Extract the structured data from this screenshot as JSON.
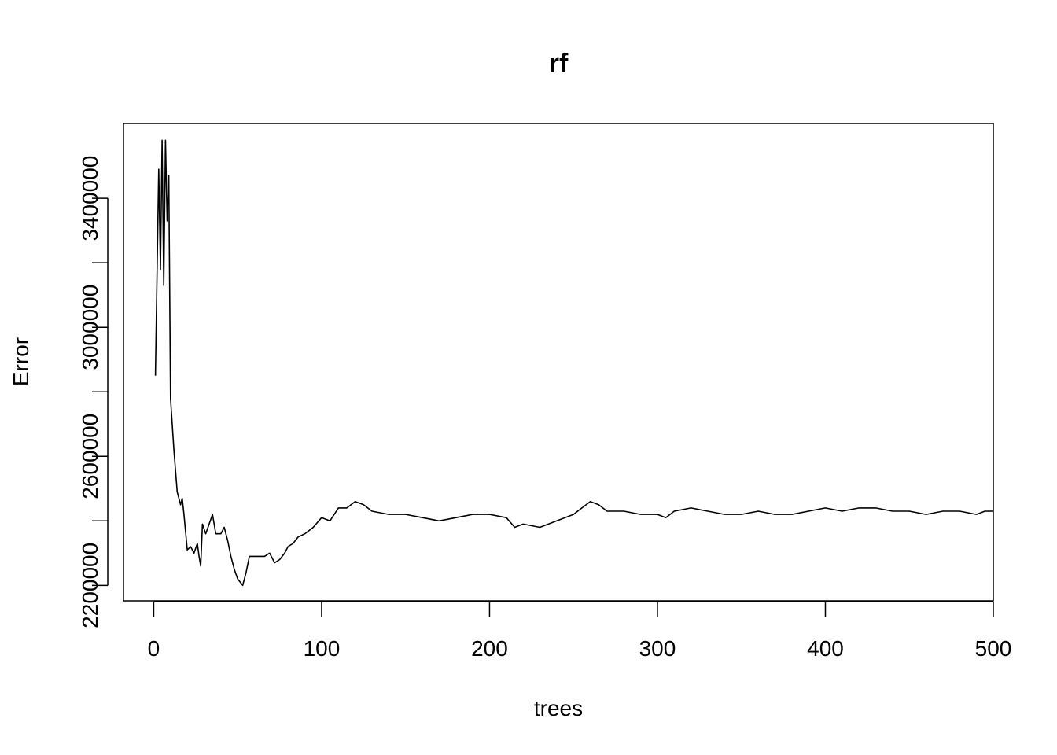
{
  "chart_data": {
    "type": "line",
    "title": "rf",
    "xlabel": "trees",
    "ylabel": "Error",
    "xlim": [
      -18,
      500
    ],
    "ylim": [
      2152000,
      3632000
    ],
    "x_ticks": [
      0,
      100,
      200,
      300,
      400,
      500
    ],
    "y_ticks": [
      2200000,
      2400000,
      2600000,
      2800000,
      3000000,
      3200000,
      3400000
    ],
    "y_tick_labels": [
      "2200000",
      "",
      "2600000",
      "",
      "3000000",
      "",
      "3400000"
    ],
    "x_tick_labels": [
      "0",
      "100",
      "200",
      "300",
      "400",
      "500"
    ],
    "grid": false,
    "legend": "none",
    "line_color": "#000000",
    "series": [
      {
        "points": [
          [
            1,
            2850000
          ],
          [
            2,
            3170000
          ],
          [
            3,
            3490000
          ],
          [
            4,
            3180000
          ],
          [
            5,
            3580000
          ],
          [
            6,
            3130000
          ],
          [
            7,
            3580000
          ],
          [
            8,
            3330000
          ],
          [
            9,
            3470000
          ],
          [
            10,
            2780000
          ],
          [
            12,
            2620000
          ],
          [
            14,
            2490000
          ],
          [
            16,
            2450000
          ],
          [
            17,
            2470000
          ],
          [
            18,
            2420000
          ],
          [
            20,
            2310000
          ],
          [
            22,
            2320000
          ],
          [
            24,
            2300000
          ],
          [
            26,
            2330000
          ],
          [
            27,
            2290000
          ],
          [
            28,
            2260000
          ],
          [
            29,
            2390000
          ],
          [
            31,
            2360000
          ],
          [
            33,
            2390000
          ],
          [
            35,
            2420000
          ],
          [
            37,
            2360000
          ],
          [
            40,
            2360000
          ],
          [
            42,
            2380000
          ],
          [
            44,
            2340000
          ],
          [
            46,
            2290000
          ],
          [
            48,
            2250000
          ],
          [
            50,
            2220000
          ],
          [
            53,
            2200000
          ],
          [
            55,
            2240000
          ],
          [
            57,
            2290000
          ],
          [
            60,
            2290000
          ],
          [
            63,
            2290000
          ],
          [
            66,
            2290000
          ],
          [
            69,
            2300000
          ],
          [
            72,
            2270000
          ],
          [
            75,
            2280000
          ],
          [
            78,
            2300000
          ],
          [
            80,
            2320000
          ],
          [
            83,
            2330000
          ],
          [
            86,
            2350000
          ],
          [
            90,
            2360000
          ],
          [
            95,
            2380000
          ],
          [
            100,
            2410000
          ],
          [
            105,
            2400000
          ],
          [
            110,
            2440000
          ],
          [
            115,
            2440000
          ],
          [
            120,
            2460000
          ],
          [
            125,
            2450000
          ],
          [
            130,
            2430000
          ],
          [
            140,
            2420000
          ],
          [
            150,
            2420000
          ],
          [
            160,
            2410000
          ],
          [
            170,
            2400000
          ],
          [
            180,
            2410000
          ],
          [
            190,
            2420000
          ],
          [
            200,
            2420000
          ],
          [
            210,
            2410000
          ],
          [
            215,
            2380000
          ],
          [
            220,
            2390000
          ],
          [
            230,
            2380000
          ],
          [
            240,
            2400000
          ],
          [
            250,
            2420000
          ],
          [
            255,
            2440000
          ],
          [
            260,
            2460000
          ],
          [
            265,
            2450000
          ],
          [
            270,
            2430000
          ],
          [
            280,
            2430000
          ],
          [
            290,
            2420000
          ],
          [
            300,
            2420000
          ],
          [
            305,
            2410000
          ],
          [
            310,
            2430000
          ],
          [
            320,
            2440000
          ],
          [
            330,
            2430000
          ],
          [
            340,
            2420000
          ],
          [
            350,
            2420000
          ],
          [
            360,
            2430000
          ],
          [
            370,
            2420000
          ],
          [
            380,
            2420000
          ],
          [
            390,
            2430000
          ],
          [
            400,
            2440000
          ],
          [
            410,
            2430000
          ],
          [
            420,
            2440000
          ],
          [
            430,
            2440000
          ],
          [
            440,
            2430000
          ],
          [
            450,
            2430000
          ],
          [
            460,
            2420000
          ],
          [
            470,
            2430000
          ],
          [
            480,
            2430000
          ],
          [
            490,
            2420000
          ],
          [
            495,
            2430000
          ],
          [
            500,
            2430000
          ]
        ]
      }
    ]
  }
}
